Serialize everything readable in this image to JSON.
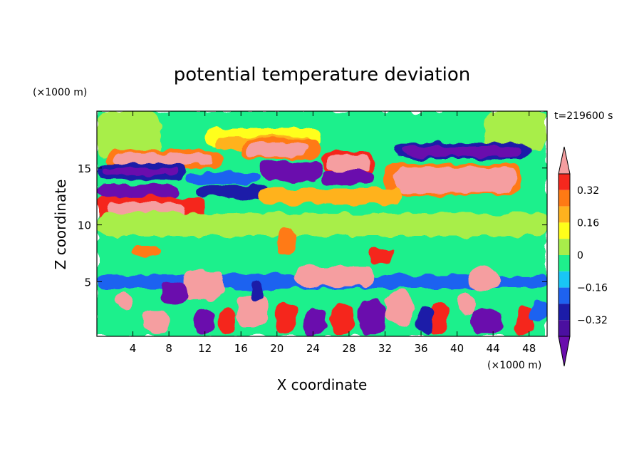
{
  "chart_data": {
    "type": "heatmap",
    "title": "potential temperature deviation",
    "xlabel": "X coordinate",
    "ylabel": "Z coordinate",
    "x_unit": "(×1000 m)",
    "y_unit": "(×1000 m)",
    "time_label": "t=219600 s",
    "xlim": [
      0,
      50
    ],
    "ylim": [
      0.2,
      20
    ],
    "x_ticks": [
      4,
      8,
      12,
      16,
      20,
      24,
      28,
      32,
      36,
      40,
      44,
      48
    ],
    "y_ticks": [
      5,
      10,
      15
    ],
    "colorbar": {
      "bins": [
        {
          "lo": -0.48,
          "hi": -0.4,
          "color": "#6a0dad"
        },
        {
          "lo": -0.4,
          "hi": -0.32,
          "color": "#4b0fa0"
        },
        {
          "lo": -0.32,
          "hi": -0.24,
          "color": "#1c1ca8"
        },
        {
          "lo": -0.24,
          "hi": -0.16,
          "color": "#1e62f0"
        },
        {
          "lo": -0.16,
          "hi": -0.08,
          "color": "#19c6f5"
        },
        {
          "lo": -0.08,
          "hi": 0.0,
          "color": "#1ef08c"
        },
        {
          "lo": 0.0,
          "hi": 0.08,
          "color": "#a8ee4a"
        },
        {
          "lo": 0.08,
          "hi": 0.16,
          "color": "#ffff1a"
        },
        {
          "lo": 0.16,
          "hi": 0.24,
          "color": "#ffb21e"
        },
        {
          "lo": 0.24,
          "hi": 0.32,
          "color": "#ff7a14"
        },
        {
          "lo": 0.32,
          "hi": 0.4,
          "color": "#f5281e"
        },
        {
          "lo": 0.4,
          "hi": 0.48,
          "color": "#f59ea0"
        }
      ],
      "tick_labels": [
        {
          "value": 0.32,
          "label": "0.32"
        },
        {
          "value": 0.16,
          "label": "0.16"
        },
        {
          "value": 0.0,
          "label": "0"
        },
        {
          "value": -0.16,
          "label": "−0.16"
        },
        {
          "value": -0.32,
          "label": "−0.32"
        }
      ],
      "extend": "both"
    },
    "features": [
      {
        "x": [
          0,
          50
        ],
        "z": [
          0.2,
          20
        ],
        "value": -0.04
      },
      {
        "x": [
          0,
          7
        ],
        "z": [
          16,
          20
        ],
        "value": 0.04
      },
      {
        "x": [
          43,
          50
        ],
        "z": [
          16.5,
          20
        ],
        "value": 0.04
      },
      {
        "x": [
          12,
          25
        ],
        "z": [
          16.8,
          18.5
        ],
        "value": 0.12
      },
      {
        "x": [
          13,
          24
        ],
        "z": [
          16.6,
          17.8
        ],
        "value": 0.2
      },
      {
        "x": [
          16,
          25
        ],
        "z": [
          15.8,
          17.6
        ],
        "value": 0.28
      },
      {
        "x": [
          16.5,
          23.5
        ],
        "z": [
          16.0,
          17.2
        ],
        "value": 0.44
      },
      {
        "x": [
          1,
          14
        ],
        "z": [
          15.0,
          16.5
        ],
        "value": 0.28
      },
      {
        "x": [
          2,
          13
        ],
        "z": [
          15.3,
          16.2
        ],
        "value": 0.44
      },
      {
        "x": [
          25,
          31
        ],
        "z": [
          14.6,
          16.4
        ],
        "value": 0.36
      },
      {
        "x": [
          25.5,
          30.5
        ],
        "z": [
          14.8,
          16.1
        ],
        "value": 0.44
      },
      {
        "x": [
          33,
          48
        ],
        "z": [
          15.8,
          17.2
        ],
        "value": -0.28
      },
      {
        "x": [
          34,
          47
        ],
        "z": [
          16.0,
          16.9
        ],
        "value": -0.44
      },
      {
        "x": [
          0,
          10
        ],
        "z": [
          14.0,
          15.4
        ],
        "value": -0.28
      },
      {
        "x": [
          0.5,
          9
        ],
        "z": [
          14.4,
          15.0
        ],
        "value": -0.44
      },
      {
        "x": [
          18,
          25
        ],
        "z": [
          13.9,
          15.6
        ],
        "value": -0.44
      },
      {
        "x": [
          25,
          31
        ],
        "z": [
          13.6,
          14.8
        ],
        "value": -0.44
      },
      {
        "x": [
          10,
          18
        ],
        "z": [
          13.6,
          14.6
        ],
        "value": -0.2
      },
      {
        "x": [
          32,
          47
        ],
        "z": [
          12.6,
          15.4
        ],
        "value": 0.3
      },
      {
        "x": [
          33,
          46.5
        ],
        "z": [
          12.8,
          15.1
        ],
        "value": 0.44
      },
      {
        "x": [
          0,
          9
        ],
        "z": [
          12.4,
          13.6
        ],
        "value": -0.44
      },
      {
        "x": [
          11,
          19
        ],
        "z": [
          12.4,
          13.5
        ],
        "value": -0.28
      },
      {
        "x": [
          18,
          34
        ],
        "z": [
          11.8,
          13.2
        ],
        "value": 0.16
      },
      {
        "x": [
          0,
          12
        ],
        "z": [
          10.0,
          12.5
        ],
        "value": 0.32
      },
      {
        "x": [
          1,
          10
        ],
        "z": [
          10.6,
          12.0
        ],
        "value": 0.44
      },
      {
        "x": [
          0,
          50
        ],
        "z": [
          9.0,
          11.0
        ],
        "value": 0.04
      },
      {
        "x": [
          20,
          22
        ],
        "z": [
          7.4,
          9.8
        ],
        "value": 0.28
      },
      {
        "x": [
          4,
          7
        ],
        "z": [
          7.2,
          8.0
        ],
        "value": 0.28
      },
      {
        "x": [
          30,
          33
        ],
        "z": [
          6.6,
          8.0
        ],
        "value": 0.36
      },
      {
        "x": [
          0,
          50
        ],
        "z": [
          4.4,
          5.6
        ],
        "value": -0.24
      },
      {
        "x": [
          0,
          50
        ],
        "z": [
          3.2,
          4.4
        ],
        "value": -0.04
      },
      {
        "x": [
          9.5,
          14
        ],
        "z": [
          3.4,
          6.0
        ],
        "value": 0.44
      },
      {
        "x": [
          22,
          31
        ],
        "z": [
          4.6,
          6.4
        ],
        "value": 0.44
      },
      {
        "x": [
          41,
          45
        ],
        "z": [
          4.4,
          6.2
        ],
        "value": 0.44
      },
      {
        "x": [
          15.5,
          19
        ],
        "z": [
          1.2,
          4.0
        ],
        "value": 0.44
      },
      {
        "x": [
          32,
          35
        ],
        "z": [
          1.2,
          4.2
        ],
        "value": 0.44
      },
      {
        "x": [
          40,
          42
        ],
        "z": [
          2.0,
          4.0
        ],
        "value": 0.44
      },
      {
        "x": [
          2,
          4
        ],
        "z": [
          2.4,
          4.0
        ],
        "value": 0.4
      },
      {
        "x": [
          5,
          8
        ],
        "z": [
          0.4,
          2.6
        ],
        "value": 0.4
      },
      {
        "x": [
          13.5,
          15.5
        ],
        "z": [
          0.4,
          2.6
        ],
        "value": 0.32
      },
      {
        "x": [
          20,
          22
        ],
        "z": [
          0.4,
          3.2
        ],
        "value": 0.32
      },
      {
        "x": [
          26,
          28.5
        ],
        "z": [
          0.4,
          3.0
        ],
        "value": 0.36
      },
      {
        "x": [
          37,
          39
        ],
        "z": [
          0.4,
          3.2
        ],
        "value": 0.32
      },
      {
        "x": [
          46.5,
          48.5
        ],
        "z": [
          0.4,
          3.0
        ],
        "value": 0.36
      },
      {
        "x": [
          7,
          10
        ],
        "z": [
          3.0,
          5.0
        ],
        "value": -0.44
      },
      {
        "x": [
          11,
          13
        ],
        "z": [
          0.4,
          2.6
        ],
        "value": -0.44
      },
      {
        "x": [
          23,
          25.5
        ],
        "z": [
          0.4,
          2.6
        ],
        "value": -0.44
      },
      {
        "x": [
          29,
          32
        ],
        "z": [
          0.4,
          3.4
        ],
        "value": -0.44
      },
      {
        "x": [
          41.5,
          45
        ],
        "z": [
          0.4,
          2.6
        ],
        "value": -0.44
      },
      {
        "x": [
          35.5,
          37.5
        ],
        "z": [
          0.4,
          2.8
        ],
        "value": -0.28
      },
      {
        "x": [
          17,
          18.5
        ],
        "z": [
          3.2,
          5.0
        ],
        "value": -0.28
      },
      {
        "x": [
          48,
          50
        ],
        "z": [
          1.4,
          3.4
        ],
        "value": -0.2
      }
    ]
  }
}
